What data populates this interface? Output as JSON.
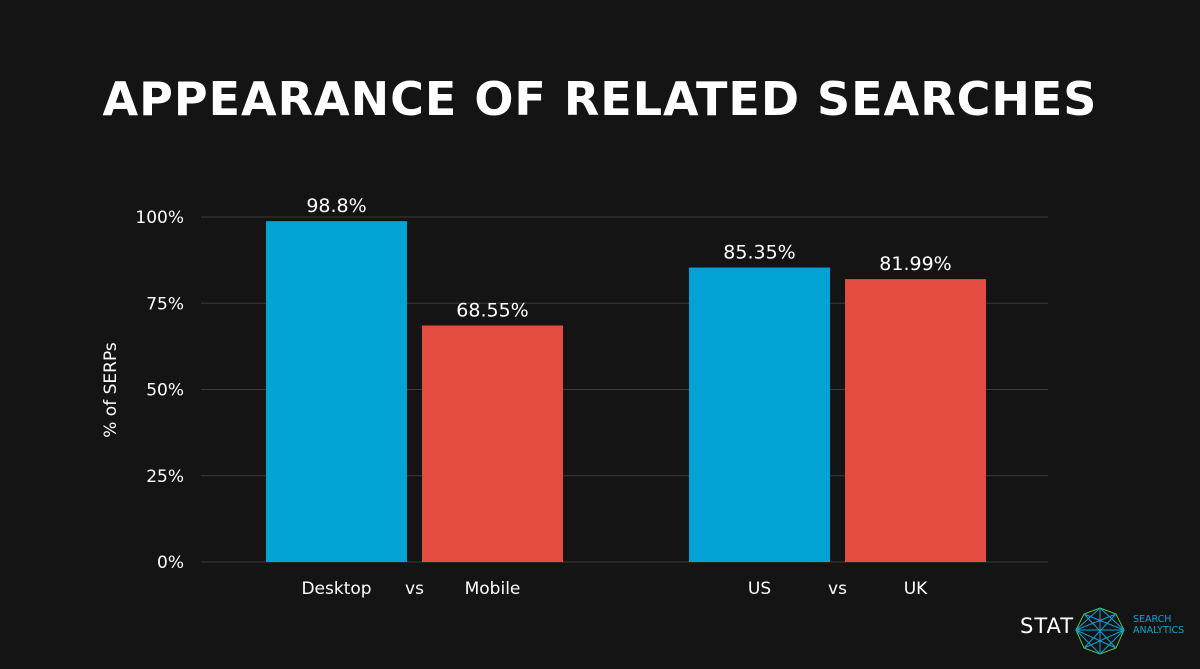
{
  "chart_data": {
    "type": "bar",
    "title": "APPEARANCE OF RELATED SEARCHES",
    "ylabel": "% of SERPs",
    "ylim": [
      0,
      100
    ],
    "yticks": [
      "0%",
      "25%",
      "50%",
      "75%",
      "100%"
    ],
    "ytick_values": [
      0,
      25,
      50,
      75,
      100
    ],
    "grid": true,
    "groups": [
      {
        "separator": "vs",
        "bars": [
          {
            "category": "Desktop",
            "value": 98.8,
            "label": "98.8%",
            "color": "#00a3d4"
          },
          {
            "category": "Mobile",
            "value": 68.55,
            "label": "68.55%",
            "color": "#e44b41"
          }
        ]
      },
      {
        "separator": "vs",
        "bars": [
          {
            "category": "US",
            "value": 85.35,
            "label": "85.35%",
            "color": "#00a3d4"
          },
          {
            "category": "UK",
            "value": 81.99,
            "label": "81.99%",
            "color": "#e44b41"
          }
        ]
      }
    ]
  },
  "logo": {
    "brand": "STAT",
    "tagline_1": "SEARCH",
    "tagline_2": "ANALYTICS"
  }
}
